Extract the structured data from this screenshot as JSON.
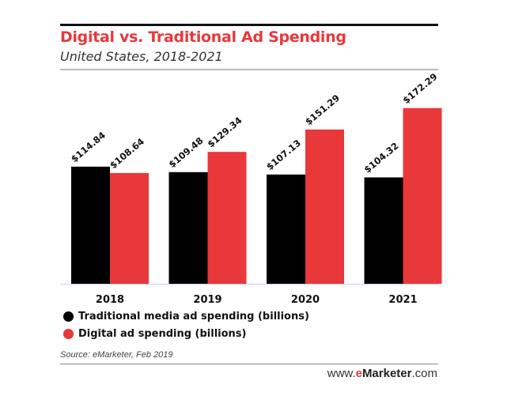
{
  "chart_data": {
    "type": "bar",
    "title": "Digital vs. Traditional Ad Spending",
    "subtitle": "United States, 2018-2021",
    "categories": [
      "2018",
      "2019",
      "2020",
      "2021"
    ],
    "series": [
      {
        "name": "Traditional media ad spending (billions)",
        "color": "#000000",
        "values": [
          114.84,
          109.48,
          107.13,
          104.32
        ],
        "labels": [
          "$114.84",
          "$109.48",
          "$107.13",
          "$104.32"
        ]
      },
      {
        "name": "Digital ad spending (billions)",
        "color": "#e8383a",
        "values": [
          108.64,
          129.34,
          151.29,
          172.29
        ],
        "labels": [
          "$108.64",
          "$129.34",
          "$151.29",
          "$172.29"
        ]
      }
    ],
    "xlabel": "",
    "ylabel": "",
    "ylim": [
      0,
      180
    ],
    "grid": false,
    "legend_position": "bottom-left",
    "source": "Source: eMarketer, Feb 2019"
  },
  "brand": {
    "prefix": "www.",
    "e": "e",
    "name": "Marketer",
    "suffix": ".com"
  }
}
